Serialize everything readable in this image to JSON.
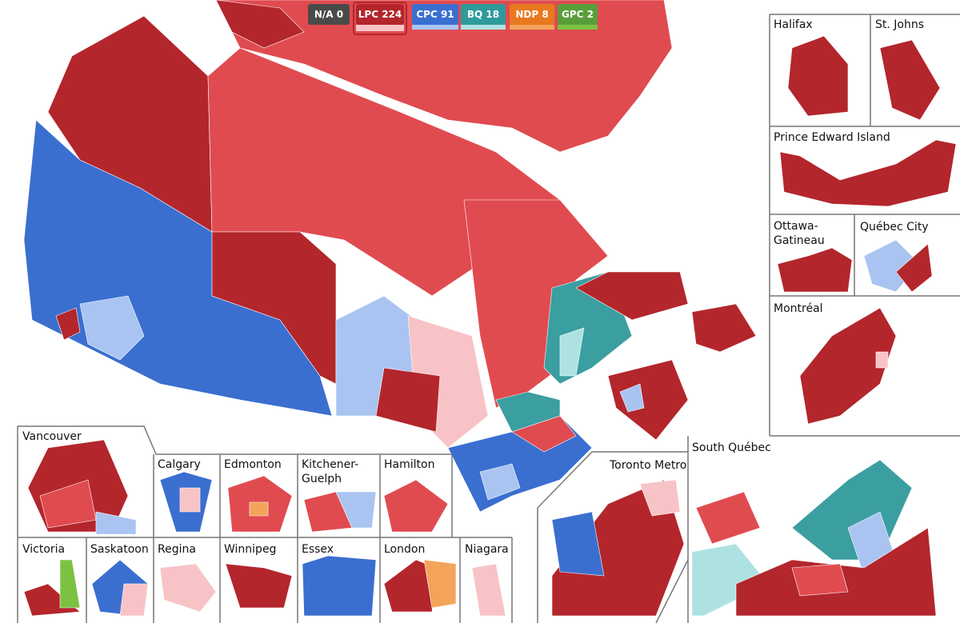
{
  "legend": [
    {
      "party": "N/A",
      "seats": 0
    },
    {
      "party": "LPC",
      "seats": 224
    },
    {
      "party": "CPC",
      "seats": 91
    },
    {
      "party": "BQ",
      "seats": 18
    },
    {
      "party": "NDP",
      "seats": 8
    },
    {
      "party": "GPC",
      "seats": 2
    }
  ],
  "insets": [
    "Halifax",
    "St. Johns",
    "Prince Edward Island",
    "Ottawa-",
    "Gatineau",
    "Québec City",
    "Montréal",
    "Vancouver",
    "Calgary",
    "Edmonton",
    "Kitchener-",
    "Guelph",
    "Hamilton",
    "Toronto Metro",
    "South Québec",
    "Victoria",
    "Saskatoon",
    "Regina",
    "Winnipeg",
    "Essex",
    "London",
    "Niagara"
  ]
}
